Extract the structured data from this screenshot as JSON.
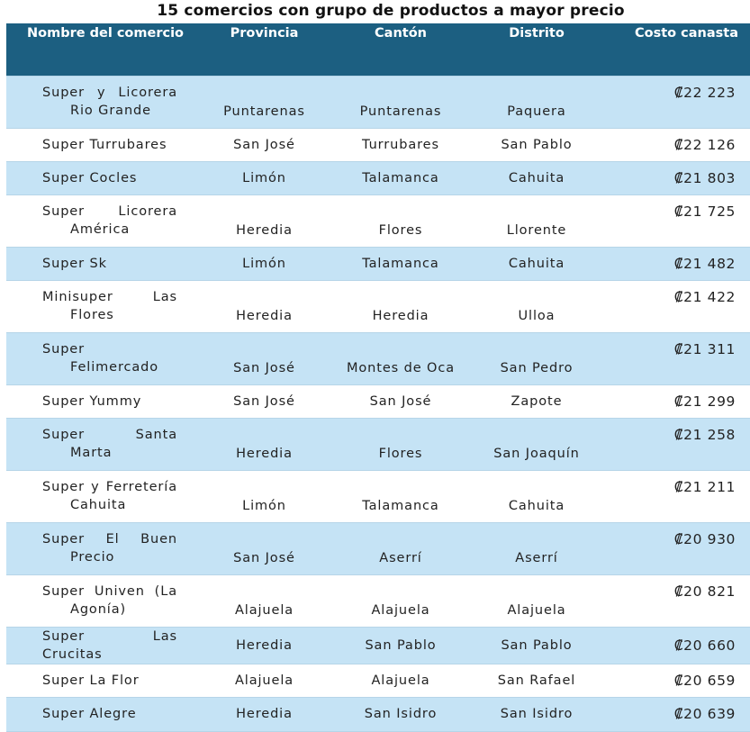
{
  "title": "15 comercios con grupo de productos a mayor precio",
  "header": {
    "name": "Nombre del comercio",
    "provincia": "Provincia",
    "canton": "Cantón",
    "distrito": "Distrito",
    "costo": "Costo canasta"
  },
  "rows": [
    {
      "name": "Super y Licorera Rio Grande",
      "provincia": "Puntarenas",
      "canton": "Puntarenas",
      "distrito": "Paquera",
      "costo": "₡22 223"
    },
    {
      "name": "Super Turrubares",
      "provincia": "San José",
      "canton": "Turrubares",
      "distrito": "San Pablo",
      "costo": "₡22 126"
    },
    {
      "name": "Super Cocles",
      "provincia": "Limón",
      "canton": "Talamanca",
      "distrito": "Cahuita",
      "costo": "₡21 803"
    },
    {
      "name": "Super Licorera América",
      "provincia": "Heredia",
      "canton": "Flores",
      "distrito": "Llorente",
      "costo": "₡21 725"
    },
    {
      "name": "Super Sk",
      "provincia": "Limón",
      "canton": "Talamanca",
      "distrito": "Cahuita",
      "costo": "₡21 482"
    },
    {
      "name": "Minisuper Las Flores",
      "provincia": "Heredia",
      "canton": "Heredia",
      "distrito": "Ulloa",
      "costo": "₡21 422"
    },
    {
      "name": "Super Felimercado",
      "provincia": "San José",
      "canton": "Montes de Oca",
      "distrito": "San Pedro",
      "costo": "₡21 311"
    },
    {
      "name": "Super Yummy",
      "provincia": "San José",
      "canton": "San José",
      "distrito": "Zapote",
      "costo": "₡21 299"
    },
    {
      "name": "Super Santa Marta",
      "provincia": "Heredia",
      "canton": "Flores",
      "distrito": "San Joaquín",
      "costo": "₡21 258"
    },
    {
      "name": "Super y Ferretería Cahuita",
      "provincia": "Limón",
      "canton": "Talamanca",
      "distrito": "Cahuita",
      "costo": "₡21 211"
    },
    {
      "name": "Super El Buen Precio",
      "provincia": "San José",
      "canton": "Aserrí",
      "distrito": "Aserrí",
      "costo": "₡20 930"
    },
    {
      "name": "Super Univen (La Agonía)",
      "provincia": "Alajuela",
      "canton": "Alajuela",
      "distrito": "Alajuela",
      "costo": "₡20 821"
    },
    {
      "name": "Super Las Crucitas",
      "provincia": "Heredia",
      "canton": "San Pablo",
      "distrito": "San Pablo",
      "costo": "₡20 660"
    },
    {
      "name": "Super La Flor",
      "provincia": "Alajuela",
      "canton": "Alajuela",
      "distrito": "San Rafael",
      "costo": "₡20 659"
    },
    {
      "name": "Super Alegre",
      "provincia": "Heredia",
      "canton": "San Isidro",
      "distrito": "San Isidro",
      "costo": "₡20 639"
    }
  ]
}
